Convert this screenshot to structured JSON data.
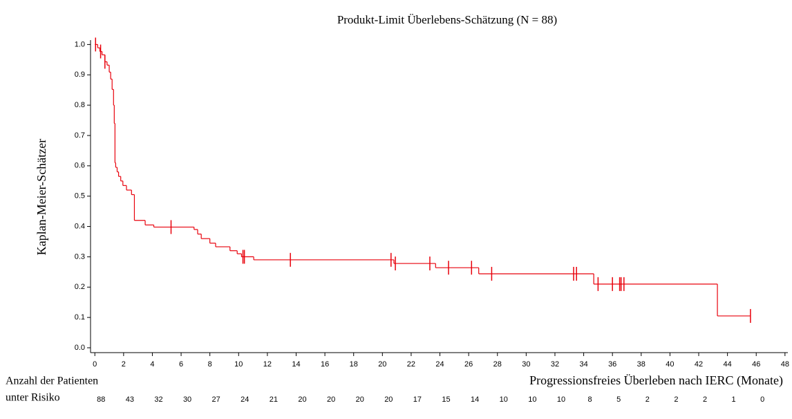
{
  "chart_data": {
    "type": "step",
    "title": "Produkt-Limit Überlebens-Schätzung (N = 88)",
    "y_label": "Kaplan-Meier-Schätzer",
    "x_label": "Progressionsfreies Überleben nach IERC (Monate)",
    "color": "#e8000b",
    "xlim": [
      -0.3,
      48.2
    ],
    "ylim": [
      -0.016,
      1.01
    ],
    "xticks": [
      0,
      2,
      4,
      6,
      8,
      10,
      12,
      14,
      16,
      18,
      20,
      22,
      24,
      26,
      28,
      30,
      32,
      34,
      36,
      38,
      40,
      42,
      44,
      46,
      48
    ],
    "yticks": [
      {
        "value": 0,
        "label": "0.0"
      },
      0.1,
      0.2,
      0.3,
      0.4,
      0.5,
      0.6,
      0.7,
      0.8,
      0.9,
      {
        "value": 1,
        "label": "1.0"
      }
    ],
    "series": [
      {
        "x": [
          0,
          0.2,
          0.35,
          0.5,
          0.7,
          0.85,
          1.0,
          1.1,
          1.2,
          1.3,
          1.35,
          1.4,
          1.45,
          1.55,
          1.65,
          1.8,
          1.95,
          2.2,
          2.55,
          2.75,
          3.5,
          4.1,
          6.9,
          7.15,
          7.4,
          8.0,
          8.4,
          9.4,
          9.9,
          10.2,
          11.05,
          20.8,
          23.7,
          26.7,
          34.7,
          43.3,
          45.6
        ],
        "values": [
          1.0,
          0.989,
          0.977,
          0.966,
          0.943,
          0.932,
          0.909,
          0.886,
          0.852,
          0.8,
          0.74,
          0.61,
          0.595,
          0.58,
          0.565,
          0.55,
          0.535,
          0.52,
          0.505,
          0.42,
          0.405,
          0.398,
          0.39,
          0.375,
          0.36,
          0.345,
          0.333,
          0.32,
          0.31,
          0.3,
          0.29,
          0.278,
          0.264,
          0.244,
          0.21,
          0.105,
          0.105
        ]
      }
    ],
    "censored": {
      "x": [
        0.05,
        0.4,
        0.7,
        5.3,
        10.3,
        10.4,
        13.6,
        20.6,
        20.9,
        23.3,
        24.6,
        26.2,
        27.6,
        33.3,
        33.5,
        35.0,
        36.0,
        36.5,
        36.6,
        36.8,
        45.6
      ],
      "values": [
        1.0,
        0.977,
        0.943,
        0.398,
        0.3,
        0.3,
        0.29,
        0.29,
        0.278,
        0.278,
        0.264,
        0.264,
        0.244,
        0.244,
        0.244,
        0.21,
        0.21,
        0.21,
        0.21,
        0.21,
        0.105
      ]
    },
    "at_risk": {
      "label_line1": "Anzahl der Patienten",
      "label_line2": "unter Risiko",
      "x": [
        0,
        2,
        4,
        6,
        8,
        10,
        12,
        14,
        16,
        18,
        20,
        22,
        24,
        26,
        28,
        30,
        32,
        34,
        36,
        38,
        40,
        42,
        44,
        46
      ],
      "values": [
        88,
        43,
        32,
        30,
        27,
        24,
        21,
        20,
        20,
        20,
        20,
        17,
        15,
        14,
        10,
        10,
        10,
        8,
        5,
        2,
        2,
        2,
        1,
        0
      ]
    }
  }
}
